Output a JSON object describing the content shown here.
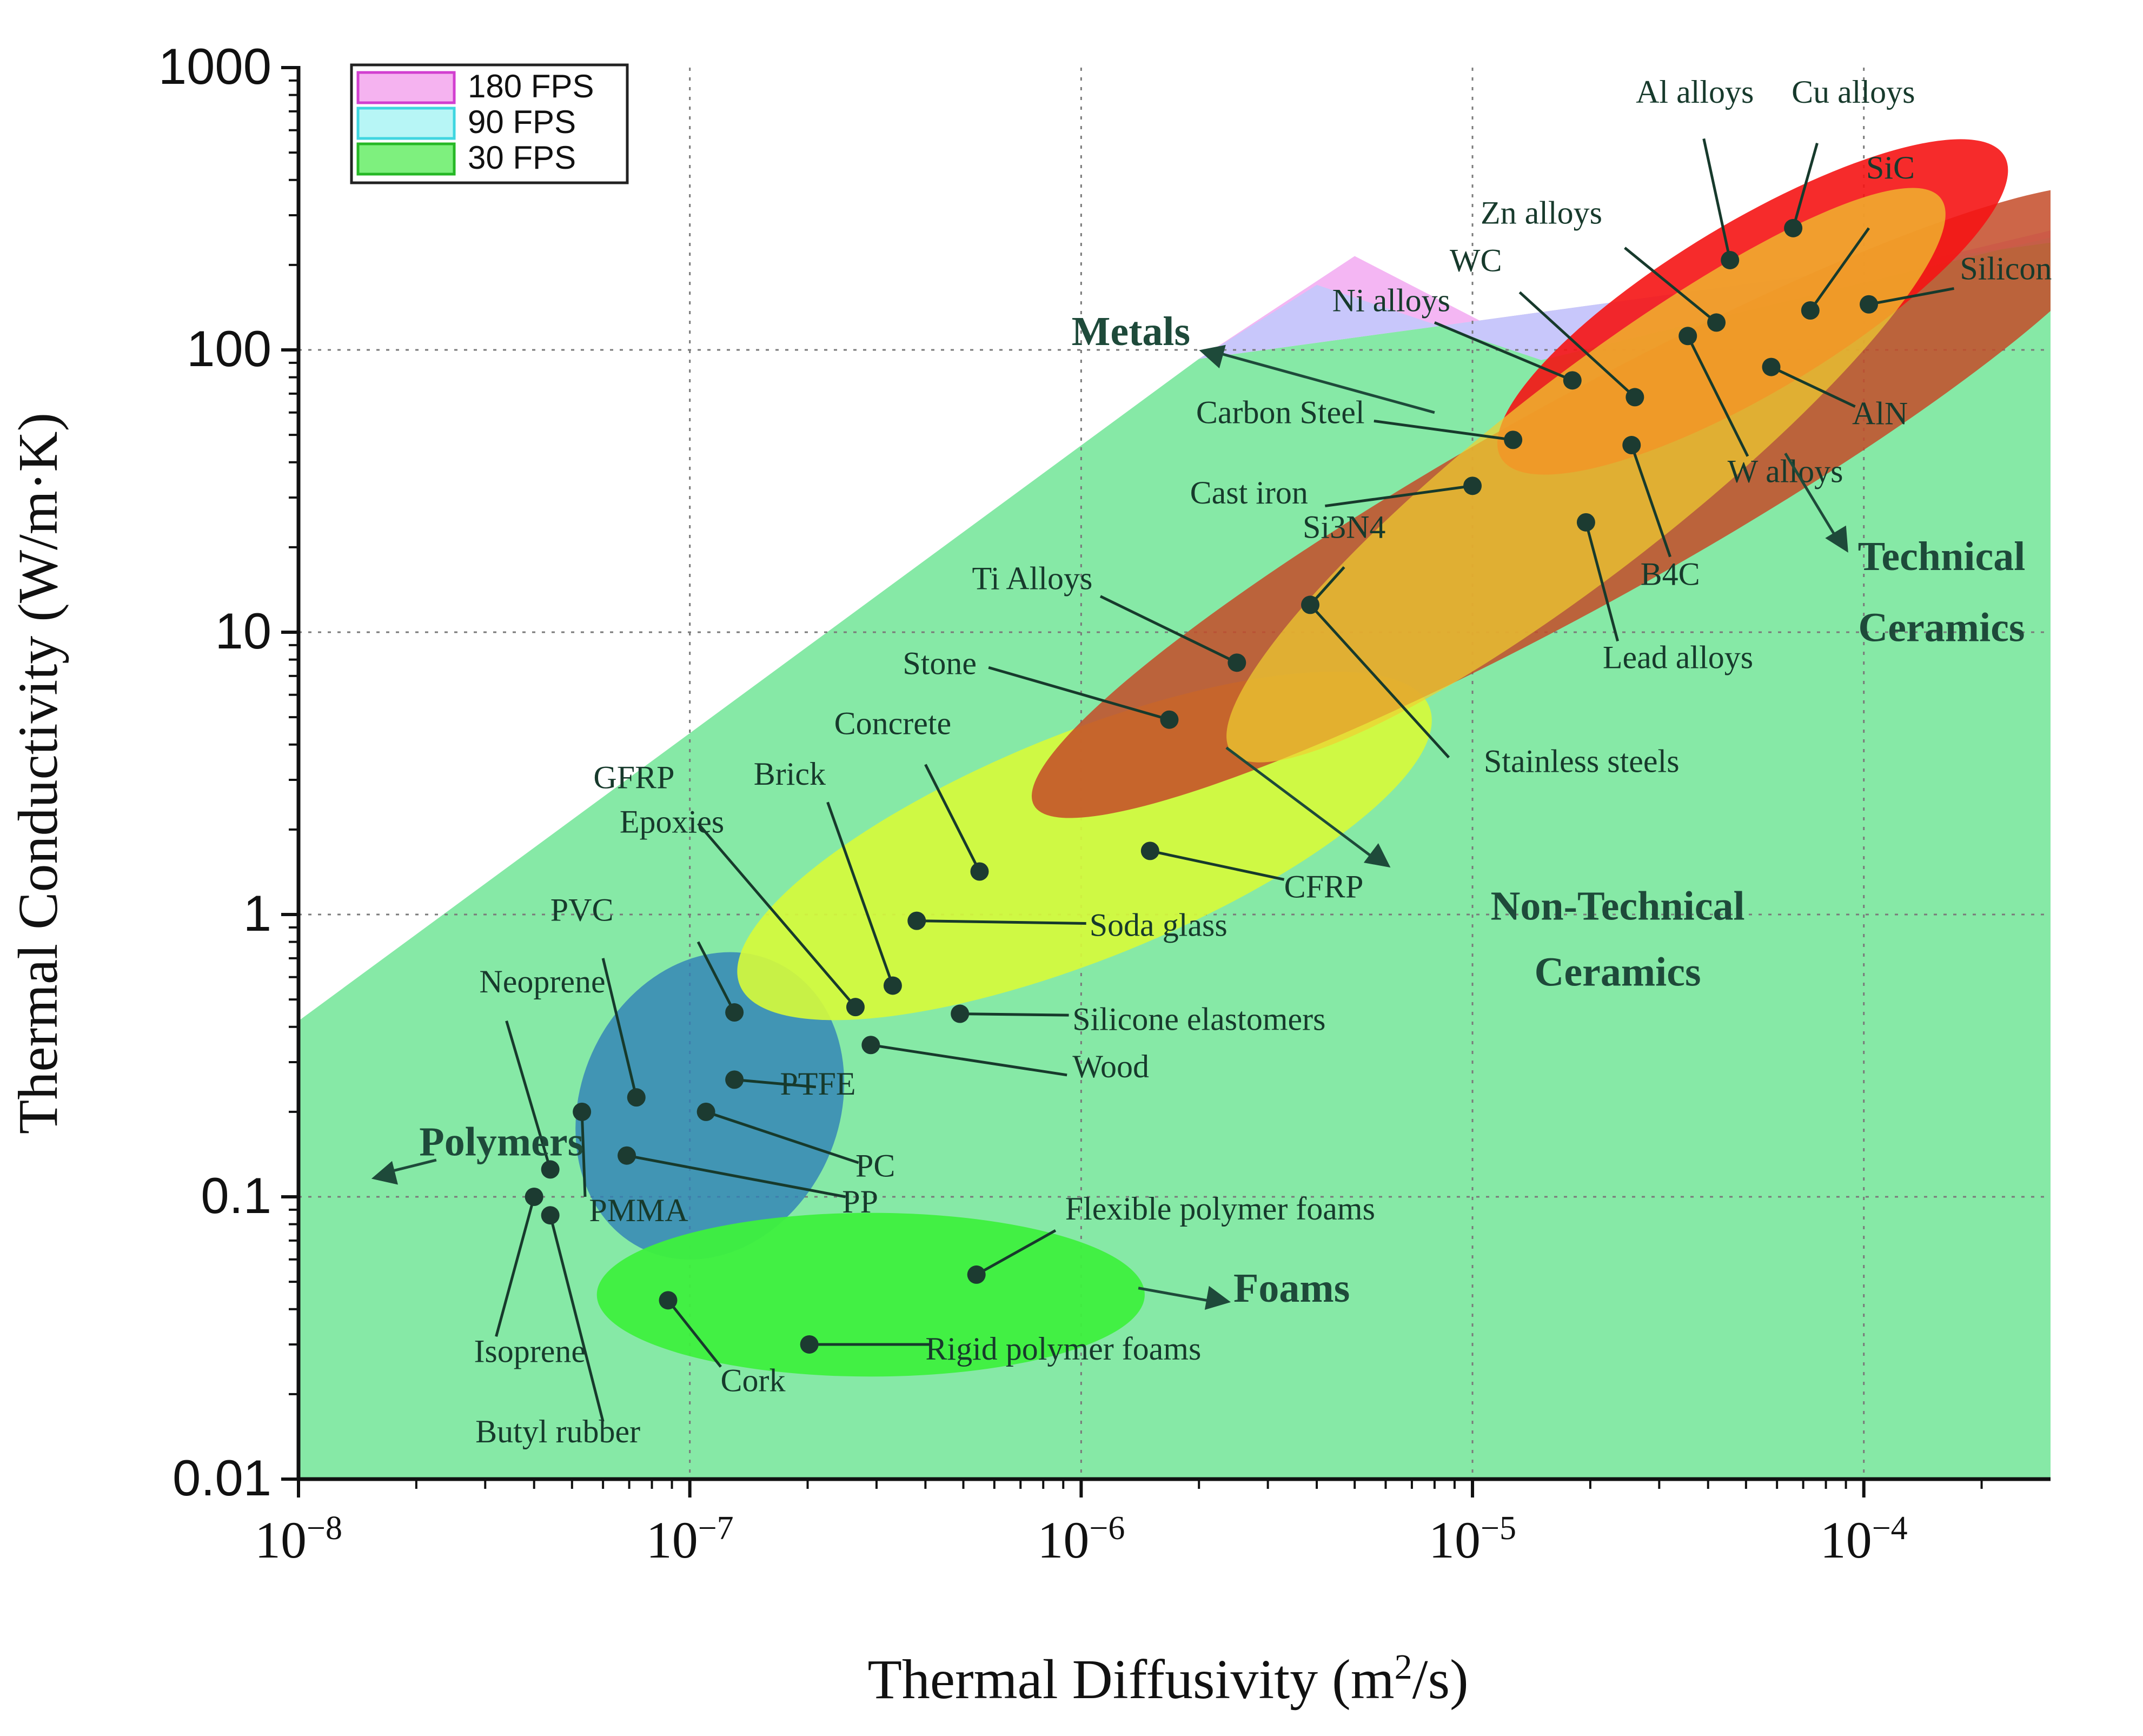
{
  "chart_data": {
    "type": "scatter",
    "x_scale": "log",
    "y_scale": "log",
    "xlim": [
      1e-08,
      0.0003
    ],
    "ylim": [
      0.01,
      1000
    ],
    "xlabel": "Thermal Diffusivity (m",
    "xlabel_sup": "2",
    "xlabel_tail": "/s)",
    "ylabel": "Thermal Conductivity (W/m·K)",
    "x_ticks": [
      {
        "value": 1e-08,
        "base": "10",
        "exp": "−8"
      },
      {
        "value": 1e-07,
        "base": "10",
        "exp": "−7"
      },
      {
        "value": 1e-06,
        "base": "10",
        "exp": "−6"
      },
      {
        "value": 1e-05,
        "base": "10",
        "exp": "−5"
      },
      {
        "value": 0.0001,
        "base": "10",
        "exp": "−4"
      }
    ],
    "y_ticks": [
      {
        "value": 0.01,
        "label": "0.01"
      },
      {
        "value": 0.1,
        "label": "0.1"
      },
      {
        "value": 1,
        "label": "1"
      },
      {
        "value": 10,
        "label": "10"
      },
      {
        "value": 100,
        "label": "100"
      },
      {
        "value": 1000,
        "label": "1000"
      }
    ],
    "grid": true,
    "legend_position": "top-left",
    "legend": [
      {
        "label": "180 FPS",
        "fill": "#f5b3f0",
        "stroke": "#d23fd0"
      },
      {
        "label": "90 FPS",
        "fill": "#b7f6f6",
        "stroke": "#3fd6e0"
      },
      {
        "label": "30 FPS",
        "fill": "#7ef07e",
        "stroke": "#26b826"
      }
    ],
    "regions": [
      {
        "name": "30 FPS",
        "color": "#86e9a6",
        "points": [
          [
            1e-08,
            0.42
          ],
          [
            2e-06,
            93
          ],
          [
            0.0003,
            240
          ],
          [
            0.0003,
            0.01
          ],
          [
            1e-08,
            0.01
          ]
        ]
      },
      {
        "name": "180 FPS",
        "color": "#f4b6f3",
        "points": [
          [
            2e-06,
            93
          ],
          [
            5e-06,
            215
          ],
          [
            1.5e-05,
            98
          ],
          [
            0.0003,
            265
          ],
          [
            0.0003,
            240
          ]
        ]
      },
      {
        "name": "90 FPS",
        "color": "#c8c7fb",
        "points": [
          [
            2e-06,
            93
          ],
          [
            4e-06,
            170
          ],
          [
            1.5e-05,
            92
          ],
          [
            0.0003,
            250
          ],
          [
            0.0003,
            240
          ]
        ]
      }
    ],
    "groups": [
      {
        "name": "Polymers",
        "color": "#2f7fb8",
        "opacity": 0.8,
        "ellipse": {
          "cx": 1.125e-07,
          "cy": 0.21,
          "rx_dec": 0.33,
          "ry_dec": 0.56,
          "rot": 24
        }
      },
      {
        "name": "Foams",
        "color": "#3ef03e",
        "opacity": 0.95,
        "ellipse": {
          "cx": 2.9e-07,
          "cy": 0.045,
          "rx_dec": 0.7,
          "ry_dec": 0.29,
          "rot": 0
        }
      },
      {
        "name": "Non-Technical Ceramics",
        "color": "#d7fb3a",
        "opacity": 0.9,
        "ellipse": {
          "cx": 1.02e-06,
          "cy": 1.75,
          "rx_dec": 0.95,
          "ry_dec": 0.4,
          "rot": -22
        }
      },
      {
        "name": "Technical Ceramics",
        "color": "#c44b28",
        "opacity": 0.85,
        "ellipse": {
          "cx": 1.9e-05,
          "cy": 29,
          "rx_dec": 1.6,
          "ry_dec": 0.36,
          "rot": -29
        }
      },
      {
        "name": "Metals",
        "color": "#f51414",
        "opacity": 0.9,
        "ellipse": {
          "cx": 5.2e-05,
          "cy": 142,
          "rx_dec": 0.75,
          "ry_dec": 0.3,
          "rot": -31
        }
      },
      {
        "name": "Metals-overlap",
        "color": "#f0d030",
        "opacity": 0.7,
        "ellipse": {
          "cx": 1.95e-05,
          "cy": 36,
          "rx_dec": 1.15,
          "ry_dec": 0.34,
          "rot": -38
        }
      }
    ],
    "points": [
      {
        "name": "Butyl rubber",
        "x": 4.4e-08,
        "y": 0.086,
        "lx": 4.6e-08,
        "ly": 0.0135,
        "lanchor": "middle",
        "line": [
          [
            4.4e-08,
            0.086
          ],
          [
            6e-08,
            0.016
          ]
        ]
      },
      {
        "name": "Isoprene",
        "x": 4e-08,
        "y": 0.1,
        "lx": 3.9e-08,
        "ly": 0.026,
        "lanchor": "middle",
        "line": [
          [
            4e-08,
            0.1
          ],
          [
            3.2e-08,
            0.032
          ]
        ]
      },
      {
        "name": "PMMA",
        "x": 5.3e-08,
        "y": 0.2,
        "lx": 7.4e-08,
        "ly": 0.082,
        "lanchor": "middle",
        "line": [
          [
            5.3e-08,
            0.2
          ],
          [
            5.4e-08,
            0.1
          ]
        ]
      },
      {
        "name": "Neoprene",
        "x": 4.4e-08,
        "y": 0.125,
        "lx": 4.2e-08,
        "ly": 0.53,
        "lanchor": "middle",
        "line": [
          [
            4.4e-08,
            0.125
          ],
          [
            3.4e-08,
            0.42
          ]
        ]
      },
      {
        "name": "PVC",
        "x": 7.3e-08,
        "y": 0.225,
        "lx": 5.3e-08,
        "ly": 0.95,
        "lanchor": "middle",
        "line": [
          [
            7.3e-08,
            0.225
          ],
          [
            6e-08,
            0.7
          ]
        ]
      },
      {
        "name": "Epoxies",
        "x": 1.3e-07,
        "y": 0.45,
        "lx": 9e-08,
        "ly": 1.95,
        "lanchor": "middle",
        "line": [
          [
            1.3e-07,
            0.45
          ],
          [
            1.05e-07,
            0.8
          ]
        ]
      },
      {
        "name": "PTFE",
        "x": 1.3e-07,
        "y": 0.26,
        "lx": 1.7e-07,
        "ly": 0.23,
        "lanchor": "start",
        "line": [
          [
            1.3e-07,
            0.26
          ],
          [
            2.1e-07,
            0.245
          ]
        ]
      },
      {
        "name": "PC",
        "x": 1.1e-07,
        "y": 0.2,
        "lx": 2.65e-07,
        "ly": 0.118,
        "lanchor": "start",
        "line": [
          [
            1.1e-07,
            0.2
          ],
          [
            2.7e-07,
            0.132
          ]
        ]
      },
      {
        "name": "PP",
        "x": 6.9e-08,
        "y": 0.14,
        "lx": 2.45e-07,
        "ly": 0.088,
        "lanchor": "start",
        "line": [
          [
            6.9e-08,
            0.14
          ],
          [
            2.5e-07,
            0.1
          ]
        ]
      },
      {
        "name": "Wood",
        "x": 2.9e-07,
        "y": 0.345,
        "lx": 9.5e-07,
        "ly": 0.265,
        "lanchor": "start",
        "line": [
          [
            2.9e-07,
            0.345
          ],
          [
            9.2e-07,
            0.27
          ]
        ]
      },
      {
        "name": "Silicone elastomers",
        "x": 4.9e-07,
        "y": 0.445,
        "lx": 9.5e-07,
        "ly": 0.39,
        "lanchor": "start",
        "line": [
          [
            4.9e-07,
            0.445
          ],
          [
            9.3e-07,
            0.44
          ]
        ]
      },
      {
        "name": "Soda glass",
        "x": 3.8e-07,
        "y": 0.95,
        "lx": 1.05e-06,
        "ly": 0.84,
        "lanchor": "start",
        "line": [
          [
            3.8e-07,
            0.95
          ],
          [
            1.03e-06,
            0.93
          ]
        ]
      },
      {
        "name": "GFRP",
        "x": 2.65e-07,
        "y": 0.47,
        "lx": 7.2e-08,
        "ly": 2.8,
        "lanchor": "middle",
        "line": [
          [
            2.65e-07,
            0.47
          ],
          [
            1.05e-07,
            2.1
          ]
        ]
      },
      {
        "name": "Brick",
        "x": 3.3e-07,
        "y": 0.56,
        "lx": 1.8e-07,
        "ly": 2.88,
        "lanchor": "middle",
        "line": [
          [
            3.3e-07,
            0.56
          ],
          [
            2.25e-07,
            2.5
          ]
        ]
      },
      {
        "name": "Concrete",
        "x": 5.5e-07,
        "y": 1.42,
        "lx": 3.3e-07,
        "ly": 4.35,
        "lanchor": "middle",
        "line": [
          [
            5.5e-07,
            1.42
          ],
          [
            4e-07,
            3.4
          ]
        ]
      },
      {
        "name": "CFRP",
        "x": 1.5e-06,
        "y": 1.68,
        "lx": 3.3e-06,
        "ly": 1.15,
        "lanchor": "start",
        "line": [
          [
            1.5e-06,
            1.68
          ],
          [
            3.3e-06,
            1.33
          ]
        ]
      },
      {
        "name": "Stone",
        "x": 1.68e-06,
        "y": 4.9,
        "lx": 4.35e-07,
        "ly": 7.1,
        "lanchor": "middle",
        "line": [
          [
            1.68e-06,
            4.9
          ],
          [
            5.8e-07,
            7.5
          ]
        ]
      },
      {
        "name": "Ti Alloys",
        "x": 2.5e-06,
        "y": 7.8,
        "lx": 7.5e-07,
        "ly": 14.2,
        "lanchor": "middle",
        "line": [
          [
            2.5e-06,
            7.8
          ],
          [
            1.12e-06,
            13.4
          ]
        ]
      },
      {
        "name": "Si3N4",
        "x": 3.85e-06,
        "y": 12.5,
        "lx": 4.7e-06,
        "ly": 21.6,
        "lanchor": "middle",
        "line": [
          [
            3.85e-06,
            12.5
          ],
          [
            4.7e-06,
            17
          ]
        ]
      },
      {
        "name": "Stainless steels",
        "x": 3.85e-06,
        "y": 12.5,
        "lx": 1.9e-05,
        "ly": 3.2,
        "lanchor": "middle",
        "line": [
          [
            3.85e-06,
            12.5
          ],
          [
            8.7e-06,
            3.6
          ]
        ]
      },
      {
        "name": "Lead alloys",
        "x": 1.95e-05,
        "y": 24.5,
        "lx": 3.35e-05,
        "ly": 7.45,
        "lanchor": "middle",
        "line": [
          [
            1.95e-05,
            24.5
          ],
          [
            2.35e-05,
            9.3
          ]
        ]
      },
      {
        "name": "B4C",
        "x": 2.55e-05,
        "y": 46,
        "lx": 3.2e-05,
        "ly": 14.7,
        "lanchor": "middle",
        "line": [
          [
            2.55e-05,
            46
          ],
          [
            3.2e-05,
            18.5
          ]
        ]
      },
      {
        "name": "Cast iron",
        "x": 1e-05,
        "y": 33,
        "lx": 3.8e-06,
        "ly": 28.6,
        "lanchor": "end",
        "line": [
          [
            1e-05,
            33
          ],
          [
            4.2e-06,
            28
          ]
        ]
      },
      {
        "name": "Carbon Steel",
        "x": 1.27e-05,
        "y": 48,
        "lx": 5.3e-06,
        "ly": 55,
        "lanchor": "end",
        "line": [
          [
            1.27e-05,
            48
          ],
          [
            5.6e-06,
            56
          ]
        ]
      },
      {
        "name": "W alloys",
        "x": 3.55e-05,
        "y": 112,
        "lx": 6.3e-05,
        "ly": 34,
        "lanchor": "middle",
        "line": [
          [
            3.55e-05,
            112
          ],
          [
            5.05e-05,
            42
          ]
        ]
      },
      {
        "name": "AlN",
        "x": 5.8e-05,
        "y": 87,
        "lx": 0.00011,
        "ly": 54.5,
        "lanchor": "middle",
        "line": [
          [
            5.8e-05,
            87
          ],
          [
            9.5e-05,
            63
          ]
        ]
      },
      {
        "name": "WC",
        "x": 2.6e-05,
        "y": 68,
        "lx": 1.02e-05,
        "ly": 190,
        "lanchor": "middle",
        "line": [
          [
            2.6e-05,
            68
          ],
          [
            1.32e-05,
            160
          ]
        ]
      },
      {
        "name": "Ni alloys",
        "x": 1.8e-05,
        "y": 78,
        "lx": 6.2e-06,
        "ly": 137,
        "lanchor": "middle",
        "line": [
          [
            1.8e-05,
            78
          ],
          [
            8e-06,
            125
          ]
        ]
      },
      {
        "name": "Zn alloys",
        "x": 4.2e-05,
        "y": 125,
        "lx": 1.5e-05,
        "ly": 280,
        "lanchor": "middle",
        "line": [
          [
            4.2e-05,
            125
          ],
          [
            2.45e-05,
            230
          ]
        ]
      },
      {
        "name": "Al alloys",
        "x": 4.55e-05,
        "y": 208,
        "lx": 3.7e-05,
        "ly": 750,
        "lanchor": "middle",
        "line": [
          [
            4.55e-05,
            208
          ],
          [
            3.9e-05,
            560
          ]
        ]
      },
      {
        "name": "Cu alloys",
        "x": 6.6e-05,
        "y": 270,
        "lx": 9.4e-05,
        "ly": 750,
        "lanchor": "middle",
        "line": [
          [
            6.6e-05,
            270
          ],
          [
            7.6e-05,
            540
          ]
        ]
      },
      {
        "name": "SiC",
        "x": 7.3e-05,
        "y": 138,
        "lx": 0.000117,
        "ly": 405,
        "lanchor": "middle",
        "line": [
          [
            7.3e-05,
            138
          ],
          [
            0.000103,
            270
          ]
        ]
      },
      {
        "name": "Silicon",
        "x": 0.000103,
        "y": 145,
        "lx": 0.000176,
        "ly": 178,
        "lanchor": "start",
        "line": [
          [
            0.000103,
            145
          ],
          [
            0.00017,
            165
          ]
        ]
      },
      {
        "name": "Cork",
        "x": 8.8e-08,
        "y": 0.043,
        "lx": 1.45e-07,
        "ly": 0.0205,
        "lanchor": "middle",
        "line": [
          [
            8.8e-08,
            0.043
          ],
          [
            1.2e-07,
            0.025
          ]
        ]
      },
      {
        "name": "Rigid polymer foams",
        "x": 2.02e-07,
        "y": 0.03,
        "lx": 4e-07,
        "ly": 0.0265,
        "lanchor": "start",
        "line": [
          [
            2.02e-07,
            0.03
          ],
          [
            4.1e-07,
            0.03
          ]
        ]
      },
      {
        "name": "Flexible polymer foams",
        "x": 5.4e-07,
        "y": 0.053,
        "lx": 9.1e-07,
        "ly": 0.083,
        "lanchor": "start",
        "line": [
          [
            5.4e-07,
            0.053
          ],
          [
            8.6e-07,
            0.076
          ]
        ]
      }
    ],
    "group_labels": [
      {
        "text": "Polymers",
        "x": 3.3e-08,
        "y": 0.14,
        "anchor": "middle",
        "arrow": [
          [
            2.25e-08,
            0.135
          ],
          [
            1.6e-08,
            0.12
          ]
        ]
      },
      {
        "text": "Foams",
        "x": 2.45e-06,
        "y": 0.0425,
        "anchor": "start",
        "arrow": [
          [
            1.4e-06,
            0.0475
          ],
          [
            2.3e-06,
            0.042
          ]
        ]
      },
      {
        "text": "Metals",
        "x": 1.9e-06,
        "y": 104,
        "anchor": "end",
        "arrow": [
          [
            8e-06,
            60
          ],
          [
            2.1e-06,
            100
          ]
        ]
      },
      {
        "text": "Technical",
        "x": 0.000158,
        "y": 16.6,
        "anchor": "middle",
        "arrow": [
          [
            6.3e-05,
            43
          ],
          [
            8.8e-05,
            20
          ]
        ]
      },
      {
        "text": "Ceramics",
        "x": 0.000158,
        "y": 9.3,
        "anchor": "middle",
        "arrow": null
      },
      {
        "text": "Non-Technical",
        "x": 2.35e-05,
        "y": 0.96,
        "anchor": "middle",
        "arrow": [
          [
            2.35e-06,
            3.9
          ],
          [
            5.9e-06,
            1.5
          ]
        ]
      },
      {
        "text": "Ceramics",
        "x": 2.35e-05,
        "y": 0.56,
        "anchor": "middle",
        "arrow": null
      }
    ]
  }
}
